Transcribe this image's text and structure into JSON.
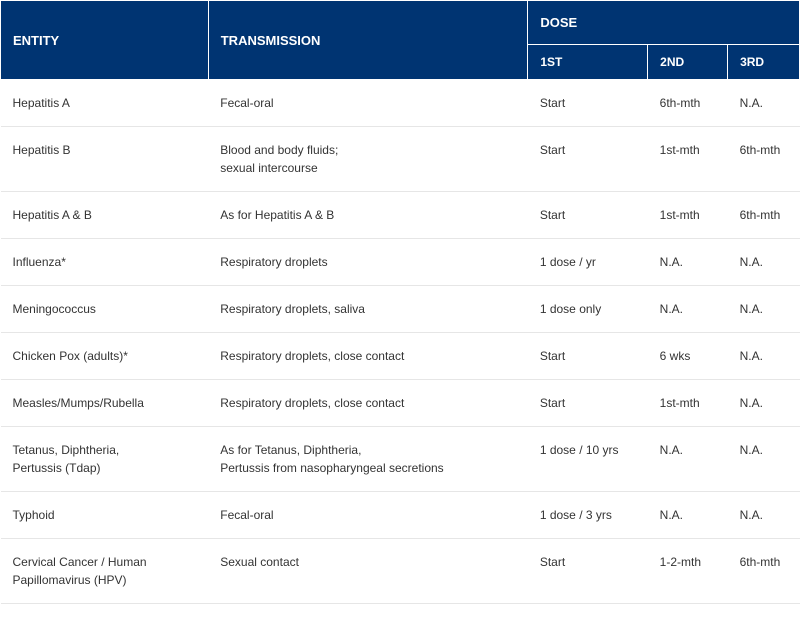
{
  "table": {
    "type": "table",
    "header_bg": "#003472",
    "header_fg": "#ffffff",
    "body_fg": "#333333",
    "border_color": "#e6e6e6",
    "header_fontsize": 13,
    "subheader_fontsize": 12,
    "body_fontsize": 12,
    "columns": {
      "entity": "ENTITY",
      "transmission": "TRANSMISSION",
      "dose": "DOSE",
      "dose1": "1ST",
      "dose2": "2ND",
      "dose3": "3RD"
    },
    "rows": [
      {
        "entity": "Hepatitis A",
        "transmission": "Fecal-oral",
        "d1": "Start",
        "d2": "6th-mth",
        "d3": "N.A."
      },
      {
        "entity": "Hepatitis B",
        "transmission": "Blood and body fluids;\nsexual intercourse",
        "d1": "Start",
        "d2": "1st-mth",
        "d3": "6th-mth"
      },
      {
        "entity": "Hepatitis A & B",
        "transmission": "As for Hepatitis A & B",
        "d1": "Start",
        "d2": "1st-mth",
        "d3": "6th-mth"
      },
      {
        "entity": "Influenza*",
        "transmission": "Respiratory droplets",
        "d1": "1 dose / yr",
        "d2": "N.A.",
        "d3": "N.A."
      },
      {
        "entity": "Meningococcus",
        "transmission": "Respiratory droplets, saliva",
        "d1": "1 dose only",
        "d2": "N.A.",
        "d3": "N.A."
      },
      {
        "entity": "Chicken Pox (adults)*",
        "transmission": "Respiratory droplets, close contact",
        "d1": "Start",
        "d2": "6 wks",
        "d3": "N.A."
      },
      {
        "entity": "Measles/Mumps/Rubella",
        "transmission": "Respiratory droplets, close contact",
        "d1": "Start",
        "d2": "1st-mth",
        "d3": "N.A."
      },
      {
        "entity": "Tetanus, Diphtheria,\nPertussis (Tdap)",
        "transmission": "As for Tetanus, Diphtheria,\nPertussis from nasopharyngeal secretions",
        "d1": "1 dose / 10 yrs",
        "d2": "N.A.",
        "d3": "N.A."
      },
      {
        "entity": "Typhoid",
        "transmission": "Fecal-oral",
        "d1": "1 dose / 3 yrs",
        "d2": "N.A.",
        "d3": "N.A."
      },
      {
        "entity": "Cervical Cancer / Human\nPapillomavirus (HPV)",
        "transmission": "Sexual contact",
        "d1": "Start",
        "d2": "1-2-mth",
        "d3": "6th-mth"
      }
    ]
  }
}
